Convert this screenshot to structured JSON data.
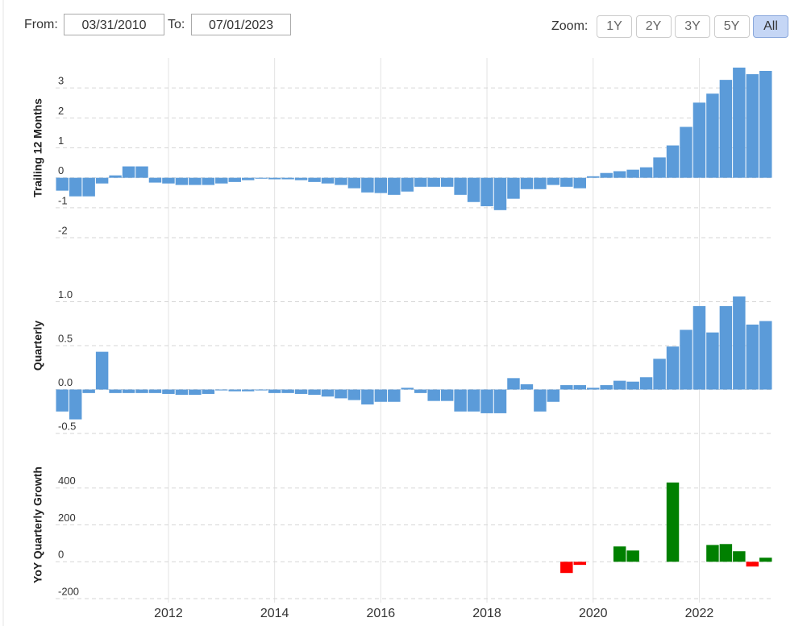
{
  "controls": {
    "from_label": "From:",
    "from_value": "03/31/2010",
    "to_label": "To:",
    "to_value": "07/01/2023",
    "zoom_label": "Zoom:",
    "zoom_buttons": [
      "1Y",
      "2Y",
      "3Y",
      "5Y",
      "All"
    ],
    "zoom_selected": "All"
  },
  "chart_data": [
    {
      "type": "bar",
      "y_label": "Trailing 12 Months",
      "color": "#5b9bd9",
      "grid": true,
      "ylim": [
        -2,
        4
      ],
      "yticks": [
        -2,
        -1,
        0,
        1,
        2,
        3
      ],
      "values": [
        -0.43,
        -0.62,
        -0.62,
        -0.19,
        0.08,
        0.38,
        0.38,
        -0.16,
        -0.19,
        -0.24,
        -0.24,
        -0.24,
        -0.19,
        -0.14,
        -0.08,
        -0.03,
        -0.05,
        -0.05,
        -0.08,
        -0.14,
        -0.19,
        -0.24,
        -0.35,
        -0.49,
        -0.51,
        -0.57,
        -0.46,
        -0.3,
        -0.3,
        -0.3,
        -0.57,
        -0.81,
        -0.95,
        -1.08,
        -0.7,
        -0.38,
        -0.38,
        -0.24,
        -0.3,
        -0.35,
        0.05,
        0.16,
        0.22,
        0.27,
        0.35,
        0.68,
        1.08,
        1.7,
        2.51,
        2.81,
        3.27,
        3.68,
        3.46,
        3.57
      ]
    },
    {
      "type": "bar",
      "y_label": "Quarterly",
      "color": "#5b9bd9",
      "grid": true,
      "ylim": [
        -0.5,
        1.5
      ],
      "yticks": [
        -0.5,
        {
          "value": 0,
          "label": "0.0"
        },
        0.5,
        {
          "value": 1,
          "label": "1.0"
        }
      ],
      "values": [
        -0.25,
        -0.34,
        -0.04,
        0.43,
        -0.04,
        -0.04,
        -0.04,
        -0.04,
        -0.05,
        -0.06,
        -0.06,
        -0.05,
        -0.01,
        -0.02,
        -0.02,
        -0.01,
        -0.04,
        -0.04,
        -0.05,
        -0.06,
        -0.08,
        -0.1,
        -0.12,
        -0.17,
        -0.14,
        -0.14,
        0.02,
        -0.04,
        -0.13,
        -0.13,
        -0.25,
        -0.25,
        -0.27,
        -0.27,
        0.13,
        0.06,
        -0.25,
        -0.14,
        0.05,
        0.05,
        0.02,
        0.05,
        0.1,
        0.09,
        0.14,
        0.35,
        0.49,
        0.68,
        0.95,
        0.65,
        0.95,
        1.06,
        0.74,
        0.78
      ]
    },
    {
      "type": "bar",
      "y_label": "YoY Quarterly Growth",
      "positive_color": "#008000",
      "negative_color": "#ff0000",
      "grid": true,
      "ylim": [
        -200,
        600
      ],
      "yticks": [
        -200,
        0,
        200,
        400
      ],
      "categories": [
        null,
        null,
        null,
        null,
        null,
        null,
        null,
        null,
        "2012",
        null,
        null,
        null,
        null,
        null,
        null,
        null,
        "2014",
        null,
        null,
        null,
        null,
        null,
        null,
        null,
        "2016",
        null,
        null,
        null,
        null,
        null,
        null,
        null,
        "2018",
        null,
        null,
        null,
        null,
        null,
        null,
        null,
        "2020",
        null,
        null,
        null,
        null,
        null,
        null,
        null,
        "2022",
        null,
        null,
        null,
        null,
        null
      ],
      "values": [
        null,
        null,
        null,
        null,
        null,
        null,
        null,
        null,
        null,
        null,
        null,
        null,
        null,
        null,
        null,
        null,
        null,
        null,
        null,
        null,
        null,
        null,
        null,
        null,
        null,
        null,
        null,
        null,
        null,
        null,
        null,
        null,
        null,
        null,
        null,
        null,
        null,
        null,
        -61,
        -17,
        null,
        null,
        83,
        61,
        null,
        null,
        430,
        null,
        null,
        91,
        96,
        57,
        -26,
        22
      ]
    }
  ]
}
